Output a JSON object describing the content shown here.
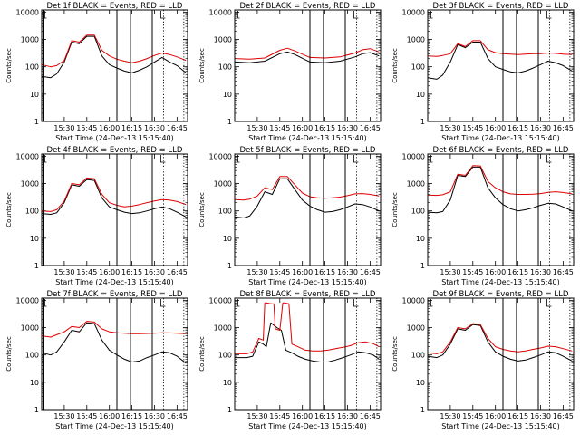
{
  "figure": {
    "ylabel": "Counts/sec",
    "xlabel": "Start Time (24-Dec-13 15:15:40)",
    "x_ticks": [
      "15:30",
      "15:45",
      "16:00",
      "16:15",
      "16:30",
      "16:45"
    ],
    "y_ticks": [
      "1",
      "10",
      "100",
      "1000",
      "10000"
    ],
    "x_tick_minutes": [
      15,
      30,
      45,
      60,
      75,
      90
    ],
    "xlim_minutes": [
      0,
      97
    ],
    "ylim": [
      1,
      12000
    ],
    "vertical_lines_minutes": [
      1.5,
      50,
      59,
      73.5
    ],
    "dotted_lines_minutes": [
      81,
      94.5
    ],
    "colors": {
      "events": "#000000",
      "lld": "#e00000"
    }
  },
  "chart_data": [
    {
      "type": "line",
      "title": "Det 1f BLACK = Events, RED = LLD",
      "xlabel": "Start Time (24-Dec-13 15:15:40)",
      "ylabel": "Counts/sec",
      "xlim_minutes": [
        0,
        97
      ],
      "ylim": [
        1,
        12000
      ],
      "series": [
        {
          "name": "Events (BLACK)",
          "x": [
            0,
            6,
            10,
            15,
            20,
            25,
            30,
            35,
            40,
            45,
            50,
            55,
            60,
            65,
            70,
            75,
            80,
            85,
            90,
            96
          ],
          "values": [
            45,
            40,
            55,
            150,
            800,
            700,
            1300,
            1300,
            250,
            120,
            90,
            70,
            60,
            75,
            100,
            150,
            220,
            150,
            110,
            60
          ]
        },
        {
          "name": "LLD (RED)",
          "x": [
            0,
            6,
            10,
            15,
            20,
            25,
            30,
            35,
            40,
            45,
            50,
            55,
            60,
            65,
            70,
            75,
            80,
            85,
            90,
            96
          ],
          "values": [
            120,
            100,
            110,
            170,
            900,
            800,
            1450,
            1450,
            400,
            250,
            190,
            160,
            140,
            160,
            200,
            260,
            320,
            280,
            230,
            170
          ]
        }
      ]
    },
    {
      "type": "line",
      "title": "Det 2f BLACK = Events, RED = LLD",
      "xlabel": "Start Time (24-Dec-13 15:15:40)",
      "ylabel": "Counts/sec",
      "xlim_minutes": [
        0,
        97
      ],
      "ylim": [
        1,
        12000
      ],
      "series": [
        {
          "name": "Events (BLACK)",
          "x": [
            0,
            10,
            20,
            30,
            35,
            40,
            50,
            60,
            70,
            80,
            85,
            90,
            96
          ],
          "values": [
            150,
            140,
            160,
            300,
            350,
            280,
            150,
            140,
            160,
            230,
            300,
            330,
            250
          ]
        },
        {
          "name": "LLD (RED)",
          "x": [
            0,
            10,
            20,
            30,
            35,
            40,
            50,
            60,
            70,
            80,
            85,
            90,
            96
          ],
          "values": [
            200,
            190,
            210,
            400,
            480,
            380,
            220,
            210,
            230,
            320,
            420,
            460,
            350
          ]
        }
      ]
    },
    {
      "type": "line",
      "title": "Det 3f BLACK = Events, RED = LLD",
      "xlabel": "Start Time (24-Dec-13 15:15:40)",
      "ylabel": "Counts/sec",
      "xlim_minutes": [
        0,
        97
      ],
      "ylim": [
        1,
        12000
      ],
      "series": [
        {
          "name": "Events (BLACK)",
          "x": [
            0,
            6,
            10,
            15,
            20,
            25,
            30,
            35,
            40,
            45,
            50,
            55,
            60,
            65,
            70,
            75,
            80,
            85,
            90,
            96
          ],
          "values": [
            40,
            35,
            50,
            150,
            650,
            500,
            800,
            800,
            200,
            100,
            80,
            65,
            60,
            70,
            90,
            120,
            160,
            140,
            110,
            70
          ]
        },
        {
          "name": "LLD (RED)",
          "x": [
            0,
            6,
            10,
            15,
            20,
            25,
            30,
            35,
            40,
            45,
            50,
            55,
            60,
            65,
            70,
            75,
            80,
            85,
            90,
            96
          ],
          "values": [
            250,
            240,
            260,
            300,
            700,
            550,
            900,
            900,
            420,
            330,
            300,
            290,
            280,
            290,
            300,
            300,
            320,
            310,
            290,
            280
          ]
        }
      ]
    },
    {
      "type": "line",
      "title": "Det 4f BLACK = Events, RED = LLD",
      "xlabel": "Start Time (24-Dec-13 15:15:40)",
      "ylabel": "Counts/sec",
      "xlim_minutes": [
        0,
        97
      ],
      "ylim": [
        1,
        12000
      ],
      "series": [
        {
          "name": "Events (BLACK)",
          "x": [
            0,
            6,
            10,
            15,
            20,
            25,
            30,
            35,
            40,
            45,
            50,
            55,
            60,
            65,
            70,
            75,
            80,
            85,
            90,
            96
          ],
          "values": [
            80,
            75,
            85,
            200,
            900,
            800,
            1400,
            1300,
            300,
            140,
            110,
            90,
            80,
            85,
            100,
            120,
            140,
            120,
            90,
            60
          ]
        },
        {
          "name": "LLD (RED)",
          "x": [
            0,
            6,
            10,
            15,
            20,
            25,
            30,
            35,
            40,
            45,
            50,
            55,
            60,
            65,
            70,
            75,
            80,
            85,
            90,
            96
          ],
          "values": [
            100,
            95,
            110,
            230,
            1000,
            900,
            1600,
            1500,
            400,
            200,
            160,
            140,
            150,
            170,
            200,
            230,
            260,
            250,
            220,
            170
          ]
        }
      ]
    },
    {
      "type": "line",
      "title": "Det 5f BLACK = Events, RED = LLD",
      "xlabel": "Start Time (24-Dec-13 15:15:40)",
      "ylabel": "Counts/sec",
      "xlim_minutes": [
        0,
        97
      ],
      "ylim": [
        1,
        12000
      ],
      "series": [
        {
          "name": "Events (BLACK)",
          "x": [
            0,
            6,
            10,
            15,
            20,
            25,
            30,
            35,
            40,
            45,
            50,
            55,
            60,
            65,
            70,
            75,
            80,
            85,
            90,
            96
          ],
          "values": [
            60,
            55,
            65,
            150,
            500,
            400,
            1500,
            1500,
            600,
            250,
            150,
            110,
            90,
            95,
            110,
            140,
            180,
            170,
            140,
            100
          ]
        },
        {
          "name": "LLD (RED)",
          "x": [
            0,
            6,
            10,
            15,
            20,
            25,
            30,
            35,
            40,
            45,
            50,
            55,
            60,
            65,
            70,
            75,
            80,
            85,
            90,
            96
          ],
          "values": [
            260,
            250,
            270,
            350,
            700,
            600,
            1800,
            1800,
            900,
            450,
            330,
            300,
            290,
            300,
            320,
            360,
            420,
            430,
            400,
            350
          ]
        }
      ]
    },
    {
      "type": "line",
      "title": "Det 6f BLACK = Events, RED = LLD",
      "xlabel": "Start Time (24-Dec-13 15:15:40)",
      "ylabel": "Counts/sec",
      "xlim_minutes": [
        0,
        97
      ],
      "ylim": [
        1,
        12000
      ],
      "series": [
        {
          "name": "Events (BLACK)",
          "x": [
            0,
            6,
            10,
            15,
            20,
            25,
            30,
            35,
            40,
            45,
            50,
            55,
            60,
            65,
            70,
            75,
            80,
            85,
            90,
            96
          ],
          "values": [
            90,
            85,
            95,
            250,
            2000,
            1800,
            4000,
            4000,
            700,
            300,
            170,
            120,
            100,
            110,
            130,
            160,
            190,
            180,
            140,
            100
          ]
        },
        {
          "name": "LLD (RED)",
          "x": [
            0,
            6,
            10,
            15,
            20,
            25,
            30,
            35,
            40,
            45,
            50,
            55,
            60,
            65,
            70,
            75,
            80,
            85,
            90,
            96
          ],
          "values": [
            380,
            370,
            390,
            500,
            2200,
            2000,
            4500,
            4400,
            1200,
            700,
            500,
            420,
            400,
            400,
            410,
            430,
            480,
            500,
            470,
            420
          ]
        }
      ]
    },
    {
      "type": "line",
      "title": "Det 7f BLACK = Events, RED = LLD",
      "xlabel": "Start Time (24-Dec-13 15:15:40)",
      "ylabel": "Counts/sec",
      "xlim_minutes": [
        0,
        97
      ],
      "ylim": [
        1,
        12000
      ],
      "series": [
        {
          "name": "Events (BLACK)",
          "x": [
            0,
            6,
            10,
            15,
            20,
            25,
            30,
            35,
            40,
            45,
            50,
            55,
            60,
            65,
            70,
            75,
            80,
            85,
            90,
            96
          ],
          "values": [
            120,
            100,
            130,
            300,
            800,
            700,
            1500,
            1400,
            350,
            150,
            100,
            70,
            55,
            60,
            80,
            100,
            130,
            120,
            90,
            50
          ]
        },
        {
          "name": "LLD (RED)",
          "x": [
            0,
            6,
            10,
            15,
            20,
            25,
            30,
            35,
            40,
            45,
            50,
            55,
            60,
            65,
            70,
            75,
            80,
            85,
            90,
            96
          ],
          "values": [
            500,
            450,
            550,
            700,
            1100,
            1000,
            1700,
            1600,
            900,
            700,
            650,
            620,
            600,
            600,
            610,
            620,
            650,
            640,
            620,
            600
          ]
        }
      ]
    },
    {
      "type": "line",
      "title": "Det 8f BLACK = Events, RED = LLD",
      "xlabel": "Start Time (24-Dec-13 15:15:40)",
      "ylabel": "Counts/sec",
      "xlim_minutes": [
        0,
        97
      ],
      "ylim": [
        1,
        12000
      ],
      "series": [
        {
          "name": "Events (BLACK)",
          "x": [
            0,
            8,
            12,
            16,
            19,
            21,
            24,
            28,
            31,
            34,
            38,
            42,
            47,
            52,
            57,
            62,
            67,
            72,
            77,
            82,
            87,
            92,
            96
          ],
          "values": [
            80,
            80,
            90,
            300,
            250,
            200,
            1500,
            1000,
            800,
            150,
            120,
            90,
            70,
            60,
            55,
            55,
            65,
            80,
            100,
            130,
            120,
            100,
            70
          ]
        },
        {
          "name": "LLD (RED)",
          "x": [
            0,
            8,
            12,
            16,
            19,
            20,
            21,
            24,
            26,
            27,
            30,
            32,
            33,
            36,
            38,
            42,
            47,
            52,
            57,
            62,
            67,
            72,
            77,
            82,
            87,
            92,
            96
          ],
          "values": [
            110,
            110,
            130,
            400,
            350,
            8000,
            8000,
            7500,
            7500,
            900,
            800,
            8000,
            8000,
            7500,
            250,
            200,
            150,
            140,
            140,
            150,
            170,
            190,
            220,
            280,
            300,
            260,
            200
          ]
        }
      ]
    },
    {
      "type": "line",
      "title": "Det 9f BLACK = Events, RED = LLD",
      "xlabel": "Start Time (24-Dec-13 15:15:40)",
      "ylabel": "Counts/sec",
      "xlim_minutes": [
        0,
        97
      ],
      "ylim": [
        1,
        12000
      ],
      "series": [
        {
          "name": "Events (BLACK)",
          "x": [
            0,
            6,
            10,
            15,
            20,
            25,
            30,
            35,
            40,
            45,
            50,
            55,
            60,
            65,
            70,
            75,
            80,
            85,
            90,
            96
          ],
          "values": [
            90,
            80,
            100,
            250,
            900,
            800,
            1300,
            1200,
            300,
            130,
            90,
            70,
            60,
            65,
            80,
            100,
            130,
            120,
            90,
            60
          ]
        },
        {
          "name": "LLD (RED)",
          "x": [
            0,
            6,
            10,
            15,
            20,
            25,
            30,
            35,
            40,
            45,
            50,
            55,
            60,
            65,
            70,
            75,
            80,
            85,
            90,
            96
          ],
          "values": [
            120,
            110,
            130,
            300,
            1000,
            900,
            1400,
            1300,
            400,
            200,
            160,
            140,
            130,
            140,
            160,
            180,
            210,
            200,
            170,
            140
          ]
        }
      ]
    }
  ]
}
